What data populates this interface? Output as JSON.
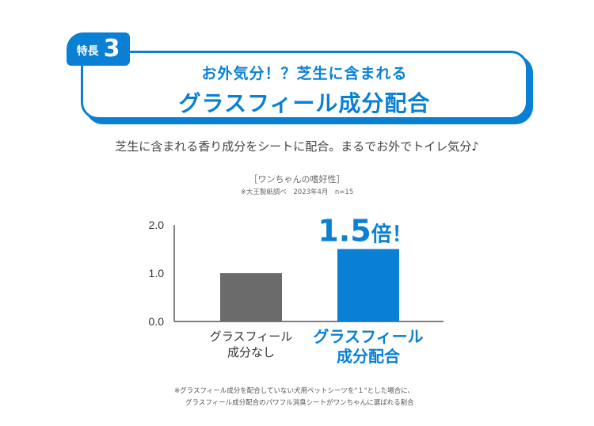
{
  "badge": {
    "label": "特長",
    "number": "3"
  },
  "headline": {
    "sub": "お外気分！？芝生に含まれる",
    "main": "グラスフィール成分配合"
  },
  "lead": "芝生に含まれる香り成分をシートに配合。まるでお外でトイレ気分♪",
  "chart_header": {
    "title": "［ワンちゃんの嗜好性］",
    "survey": "※大王製紙調べ　2023年4月　n=15"
  },
  "chart_data": {
    "type": "bar",
    "categories": [
      [
        "グラスフィール",
        "成分なし"
      ],
      [
        "グラスフィール",
        "成分配合"
      ]
    ],
    "values": [
      1.0,
      1.5
    ],
    "y_ticks": [
      "0.0",
      "1.0",
      "2.0"
    ],
    "ylim": [
      0,
      2.0
    ],
    "grid": false,
    "bar_colors": [
      "#6b6b6b",
      "#0a80d4"
    ],
    "label_colors": [
      "#333333",
      "#0a80d4"
    ],
    "annotation": {
      "value": "1.5",
      "suffix": "倍！",
      "category_index": 1
    }
  },
  "notes": [
    "※グラスフィール成分を配合していない犬用ペットシーツを\"１\"とした場合に、",
    "グラスフィール成分配合のパワフル消臭シートがワンちゃんに選ばれる割合"
  ],
  "colors": {
    "accent": "#0a80d4"
  }
}
